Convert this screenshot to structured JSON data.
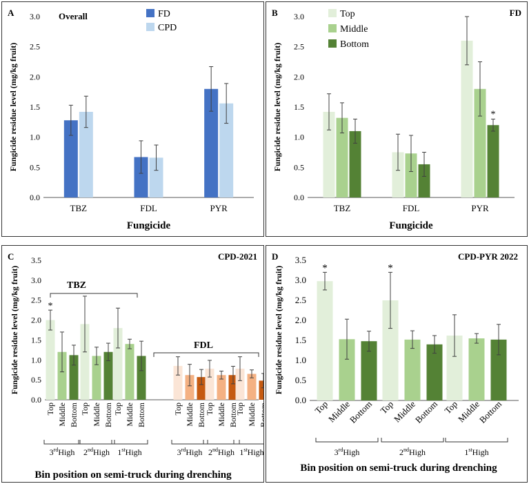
{
  "colors": {
    "fd": "#4472C4",
    "cpd": "#BDD7EE",
    "top": "#E2EFDA",
    "middle": "#A9D18E",
    "bottom": "#548235",
    "fdl_top": "#FBE5D6",
    "fdl_middle": "#F4B183",
    "fdl_bottom": "#C55A11",
    "error": "#404040",
    "axis": "#595959"
  },
  "chart_data": [
    {
      "type": "bar",
      "panel_letter": "A",
      "title": "Overall",
      "xlabel": "Fungicide",
      "ylabel": "Fungicide residue level  (mg/kg fruit)",
      "ylim": [
        0,
        3.0
      ],
      "yticks": [
        "0.0",
        "0.5",
        "1.0",
        "1.5",
        "2.0",
        "2.5",
        "3.0"
      ],
      "categories": [
        "TBZ",
        "FDL",
        "PYR"
      ],
      "series": [
        {
          "name": "FD",
          "color_key": "fd",
          "values": [
            1.28,
            0.67,
            1.8
          ],
          "errors": [
            0.25,
            0.27,
            0.37
          ]
        },
        {
          "name": "CPD",
          "color_key": "cpd",
          "values": [
            1.42,
            0.66,
            1.56
          ],
          "errors": [
            0.26,
            0.21,
            0.33
          ]
        }
      ]
    },
    {
      "type": "bar",
      "panel_letter": "B",
      "title": "FD",
      "xlabel": "Fungicide",
      "ylabel": "Fungicide residue level  (mg/kg fruit)",
      "ylim": [
        0,
        3.0
      ],
      "yticks": [
        "0.0",
        "0.5",
        "1.0",
        "1.5",
        "2.0",
        "2.5",
        "3.0"
      ],
      "categories": [
        "TBZ",
        "FDL",
        "PYR"
      ],
      "series": [
        {
          "name": "Top",
          "color_key": "top",
          "values": [
            1.42,
            0.75,
            2.6
          ],
          "errors": [
            0.3,
            0.3,
            0.4
          ]
        },
        {
          "name": "Middle",
          "color_key": "middle",
          "values": [
            1.32,
            0.73,
            1.8
          ],
          "errors": [
            0.25,
            0.3,
            0.45
          ]
        },
        {
          "name": "Bottom",
          "color_key": "bottom",
          "values": [
            1.1,
            0.55,
            1.2
          ],
          "errors": [
            0.2,
            0.2,
            0.1
          ]
        }
      ],
      "annotations": [
        {
          "text": "*",
          "series": 2,
          "category": 2
        }
      ]
    },
    {
      "type": "bar",
      "panel_letter": "C",
      "title": "CPD-2021",
      "xlabel": "Bin position on semi-truck during drenching",
      "ylabel": "Fungicide residue level  (mg/kg fruit)",
      "ylim": [
        0,
        3.5
      ],
      "yticks": [
        "0.0",
        "0.5",
        "1.0",
        "1.5",
        "2.0",
        "2.5",
        "3.0",
        "3.5"
      ],
      "positions": [
        "Top",
        "Middle",
        "Bottom"
      ],
      "group_labels": [
        {
          "ord": "3",
          "sup": "rd",
          "rest": "High"
        },
        {
          "ord": "2",
          "sup": "nd",
          "rest": "High"
        },
        {
          "ord": "1",
          "sup": "st",
          "rest": "High"
        }
      ],
      "fungicides": [
        {
          "name": "TBZ",
          "colors": [
            "top",
            "middle",
            "bottom"
          ],
          "values": [
            [
              2.0,
              1.2,
              1.12
            ],
            [
              1.9,
              1.1,
              1.2
            ],
            [
              1.8,
              1.4,
              1.1
            ]
          ],
          "errors": [
            [
              0.25,
              0.5,
              0.25
            ],
            [
              0.7,
              0.22,
              0.22
            ],
            [
              0.5,
              0.12,
              0.37
            ]
          ],
          "annotations": [
            {
              "text": "*",
              "group": 0,
              "bar": 0
            }
          ]
        },
        {
          "name": "FDL",
          "colors": [
            "fdl_top",
            "fdl_middle",
            "fdl_bottom"
          ],
          "values": [
            [
              0.85,
              0.62,
              0.57
            ],
            [
              0.78,
              0.62,
              0.62
            ],
            [
              0.78,
              0.65,
              0.48
            ]
          ],
          "errors": [
            [
              0.23,
              0.27,
              0.19
            ],
            [
              0.21,
              0.1,
              0.22
            ],
            [
              0.3,
              0.1,
              0.18
            ]
          ],
          "annotations": []
        }
      ]
    },
    {
      "type": "bar",
      "panel_letter": "D",
      "title": "CPD-PYR 2022",
      "xlabel": "Bin position on semi-truck during drenching",
      "ylabel": "Fungicide residue level  (mg/kg fruit)",
      "ylim": [
        0,
        3.5
      ],
      "yticks": [
        "0.0",
        "0.5",
        "1.0",
        "1.5",
        "2.0",
        "2.5",
        "3.0",
        "3.5"
      ],
      "positions": [
        "Top",
        "Middle",
        "Bottom"
      ],
      "group_labels": [
        {
          "ord": "3",
          "sup": "rd",
          "rest": "High"
        },
        {
          "ord": "2",
          "sup": "nd",
          "rest": "High"
        },
        {
          "ord": "1",
          "sup": "st",
          "rest": "High"
        }
      ],
      "colors": [
        "top",
        "middle",
        "bottom"
      ],
      "values": [
        [
          2.98,
          1.53,
          1.48
        ],
        [
          2.5,
          1.52,
          1.4
        ],
        [
          1.62,
          1.55,
          1.52
        ]
      ],
      "errors": [
        [
          0.22,
          0.5,
          0.25
        ],
        [
          0.7,
          0.22,
          0.22
        ],
        [
          0.52,
          0.12,
          0.38
        ]
      ],
      "annotations": [
        {
          "text": "*",
          "group": 0,
          "bar": 0
        },
        {
          "text": "*",
          "group": 1,
          "bar": 0
        }
      ]
    }
  ]
}
